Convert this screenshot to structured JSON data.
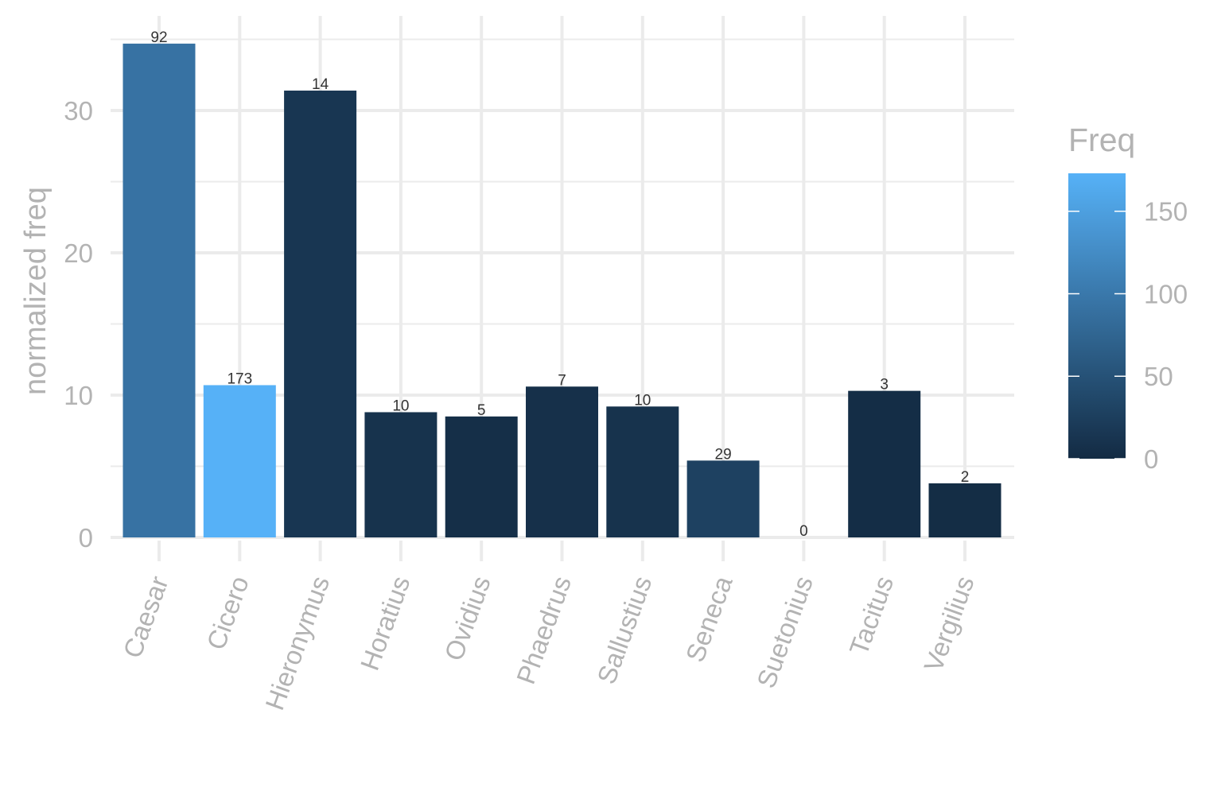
{
  "chart_data": {
    "type": "bar",
    "xlabel": "",
    "ylabel": "normalized freq",
    "ylim": [
      0,
      35
    ],
    "yticks": [
      0,
      10,
      20,
      30
    ],
    "grid": true,
    "legend": {
      "title": "Freq",
      "placement": "right",
      "type": "colorbar",
      "range": [
        0,
        173
      ],
      "ticks": [
        0,
        50,
        100,
        150
      ],
      "color_low": "#132b43",
      "color_high": "#56b1f7"
    },
    "categories": [
      "Caesar",
      "Cicero",
      "Hieronymus",
      "Horatius",
      "Ovidius",
      "Phaedrus",
      "Sallustius",
      "Seneca",
      "Suetonius",
      "Tacitus",
      "Vergilius"
    ],
    "values": [
      34.7,
      10.7,
      31.4,
      8.8,
      8.5,
      10.6,
      9.2,
      5.4,
      0,
      10.3,
      3.8
    ],
    "bar_labels": [
      "92",
      "173",
      "14",
      "10",
      "5",
      "7",
      "10",
      "29",
      "0",
      "3",
      "2"
    ],
    "fill_values": [
      92,
      173,
      14,
      10,
      5,
      7,
      10,
      29,
      0,
      3,
      2
    ]
  }
}
